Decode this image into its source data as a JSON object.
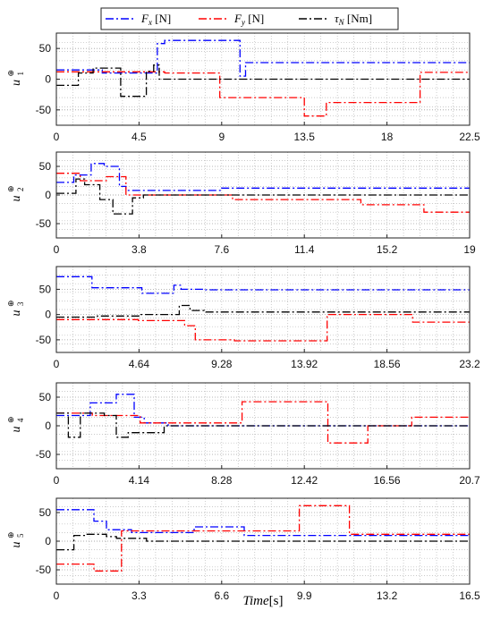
{
  "legend": {
    "entries": [
      {
        "sym": "F",
        "sub": "x",
        "unit": " [N]",
        "color": "#0000ff"
      },
      {
        "sym": "F",
        "sub": "y",
        "unit": " [N]",
        "color": "#ff0000"
      },
      {
        "sym": "τ",
        "sub": "N",
        "unit": " [Nm]",
        "color": "#000000"
      }
    ]
  },
  "xlabel": {
    "italic": "Time",
    "unit": "[s]"
  },
  "chart_data": [
    {
      "type": "line",
      "ylabel": {
        "base": "u",
        "sub": "1",
        "sup": "⊕"
      },
      "xlim": [
        0,
        22.5
      ],
      "ylim": [
        -75,
        75
      ],
      "xtick_labels": [
        "0",
        "4.5",
        "9",
        "13.5",
        "18",
        "22.5"
      ],
      "ytick_labels": [
        "50",
        "0",
        "-50"
      ],
      "yticks": [
        50,
        0,
        -50
      ],
      "grid": true,
      "series": [
        {
          "key": "Fx",
          "color": "#0000ff",
          "x": [
            0,
            2.5,
            2.5,
            5.5,
            5.5,
            5.9,
            5.9,
            10.0,
            10.0,
            10.3,
            10.3,
            22.5
          ],
          "y": [
            15,
            15,
            10,
            10,
            58,
            58,
            63,
            63,
            5,
            5,
            27,
            27
          ]
        },
        {
          "key": "Fy",
          "color": "#ff0000",
          "x": [
            0,
            5.9,
            5.9,
            8.9,
            8.9,
            13.5,
            13.5,
            14.7,
            14.7,
            19.8,
            19.8,
            22.5
          ],
          "y": [
            12,
            12,
            10,
            10,
            -30,
            -30,
            -60,
            -60,
            -38,
            -38,
            11,
            11
          ]
        },
        {
          "key": "Tau",
          "color": "#000000",
          "x": [
            0,
            1.2,
            1.2,
            2.0,
            2.0,
            3.5,
            3.5,
            4.9,
            4.9,
            5.3,
            5.3,
            5.6,
            5.6,
            22.5
          ],
          "y": [
            -10,
            -10,
            10,
            10,
            18,
            18,
            -28,
            -28,
            13,
            13,
            23,
            23,
            0,
            0
          ]
        }
      ]
    },
    {
      "type": "line",
      "ylabel": {
        "base": "u",
        "sub": "2",
        "sup": "⊕"
      },
      "xlim": [
        0,
        19
      ],
      "ylim": [
        -75,
        75
      ],
      "xtick_labels": [
        "0",
        "3.8",
        "7.6",
        "11.4",
        "15.2",
        "19"
      ],
      "ytick_labels": [
        "50",
        "0",
        "-50"
      ],
      "yticks": [
        50,
        0,
        -50
      ],
      "grid": true,
      "series": [
        {
          "key": "Fx",
          "color": "#0000ff",
          "x": [
            0,
            0.8,
            0.8,
            1.6,
            1.6,
            2.2,
            2.2,
            2.9,
            2.9,
            3.2,
            3.2,
            7.6,
            7.6,
            19
          ],
          "y": [
            22,
            22,
            35,
            35,
            55,
            55,
            50,
            50,
            15,
            15,
            8,
            8,
            12,
            12
          ]
        },
        {
          "key": "Fy",
          "color": "#ff0000",
          "x": [
            0,
            1.1,
            1.1,
            2.3,
            2.3,
            3.2,
            3.2,
            8.1,
            8.1,
            14.0,
            14.0,
            16.9,
            16.9,
            19
          ],
          "y": [
            38,
            38,
            25,
            25,
            32,
            32,
            0,
            0,
            -8,
            -8,
            -17,
            -17,
            -30,
            -30
          ]
        },
        {
          "key": "Tau",
          "color": "#000000",
          "x": [
            0,
            0.9,
            0.9,
            1.3,
            1.3,
            2.0,
            2.0,
            2.6,
            2.6,
            3.5,
            3.5,
            4.0,
            4.0,
            19
          ],
          "y": [
            3,
            3,
            28,
            28,
            18,
            18,
            -8,
            -8,
            -33,
            -33,
            -5,
            -5,
            0,
            0
          ]
        }
      ]
    },
    {
      "type": "line",
      "ylabel": {
        "base": "u",
        "sub": "3",
        "sup": "⊕"
      },
      "xlim": [
        0,
        23.2
      ],
      "ylim": [
        -75,
        95
      ],
      "xtick_labels": [
        "0",
        "4.64",
        "9.28",
        "13.92",
        "18.56",
        "23.2"
      ],
      "ytick_labels": [
        "50",
        "0",
        "-50"
      ],
      "yticks": [
        50,
        0,
        -50
      ],
      "grid": true,
      "series": [
        {
          "key": "Fx",
          "color": "#0000ff",
          "x": [
            0,
            2.0,
            2.0,
            4.8,
            4.8,
            6.6,
            6.6,
            7.0,
            7.0,
            8.2,
            8.2,
            23.2
          ],
          "y": [
            75,
            75,
            53,
            53,
            42,
            42,
            58,
            58,
            50,
            50,
            49,
            49
          ]
        },
        {
          "key": "Fy",
          "color": "#ff0000",
          "x": [
            0,
            4.6,
            4.6,
            7.2,
            7.2,
            7.8,
            7.8,
            10.0,
            10.0,
            15.2,
            15.2,
            20.0,
            20.0,
            23.2
          ],
          "y": [
            -10,
            -10,
            -12,
            -12,
            -22,
            -22,
            -50,
            -50,
            -52,
            -52,
            0,
            0,
            -15,
            -15
          ]
        },
        {
          "key": "Tau",
          "color": "#000000",
          "x": [
            0,
            2.3,
            2.3,
            4.7,
            4.7,
            6.9,
            6.9,
            7.5,
            7.5,
            8.3,
            8.3,
            23.2
          ],
          "y": [
            -5,
            -5,
            -3,
            -3,
            0,
            0,
            18,
            18,
            8,
            8,
            5,
            5
          ]
        }
      ]
    },
    {
      "type": "line",
      "ylabel": {
        "base": "u",
        "sub": "4",
        "sup": "⊕"
      },
      "xlim": [
        0,
        20.7
      ],
      "ylim": [
        -75,
        75
      ],
      "xtick_labels": [
        "0",
        "4.14",
        "8.28",
        "12.42",
        "16.56",
        "20.7"
      ],
      "ytick_labels": [
        "50",
        "0",
        "-50"
      ],
      "yticks": [
        50,
        0,
        -50
      ],
      "grid": true,
      "series": [
        {
          "key": "Fx",
          "color": "#0000ff",
          "x": [
            0,
            1.7,
            1.7,
            3.0,
            3.0,
            3.9,
            3.9,
            4.4,
            4.4,
            5.6,
            5.6,
            20.7
          ],
          "y": [
            18,
            18,
            40,
            40,
            55,
            55,
            15,
            15,
            5,
            5,
            0,
            0
          ]
        },
        {
          "key": "Fy",
          "color": "#ff0000",
          "x": [
            0,
            1.8,
            1.8,
            4.2,
            4.2,
            9.3,
            9.3,
            13.6,
            13.6,
            15.6,
            15.6,
            17.8,
            17.8,
            20.7
          ],
          "y": [
            22,
            22,
            18,
            18,
            5,
            5,
            42,
            42,
            -30,
            -30,
            0,
            0,
            15,
            15
          ]
        },
        {
          "key": "Tau",
          "color": "#000000",
          "x": [
            0,
            0.6,
            0.6,
            1.2,
            1.2,
            2.4,
            2.4,
            3.0,
            3.0,
            3.6,
            3.6,
            5.4,
            5.4,
            20.7
          ],
          "y": [
            22,
            22,
            -20,
            -20,
            22,
            22,
            18,
            18,
            -20,
            -20,
            -12,
            -12,
            0,
            0
          ]
        }
      ]
    },
    {
      "type": "line",
      "ylabel": {
        "base": "u",
        "sub": "5",
        "sup": "⊕"
      },
      "xlim": [
        0,
        16.5
      ],
      "ylim": [
        -75,
        75
      ],
      "xtick_labels": [
        "0",
        "3.3",
        "6.6",
        "9.9",
        "13.2",
        "16.5"
      ],
      "ytick_labels": [
        "50",
        "0",
        "-50"
      ],
      "yticks": [
        50,
        0,
        -50
      ],
      "grid": true,
      "series": [
        {
          "key": "Fx",
          "color": "#0000ff",
          "x": [
            0,
            1.5,
            1.5,
            2.0,
            2.0,
            3.0,
            3.0,
            5.5,
            5.5,
            7.5,
            7.5,
            16.5
          ],
          "y": [
            55,
            55,
            35,
            35,
            20,
            20,
            15,
            15,
            25,
            25,
            10,
            10
          ]
        },
        {
          "key": "Fy",
          "color": "#ff0000",
          "x": [
            0,
            1.5,
            1.5,
            2.6,
            2.6,
            9.7,
            9.7,
            11.7,
            11.7,
            16.5
          ],
          "y": [
            -40,
            -40,
            -52,
            -52,
            18,
            18,
            62,
            62,
            12,
            12
          ]
        },
        {
          "key": "Tau",
          "color": "#000000",
          "x": [
            0,
            0.7,
            0.7,
            1.2,
            1.2,
            2.0,
            2.0,
            2.4,
            2.4,
            3.6,
            3.6,
            16.5
          ],
          "y": [
            -15,
            -15,
            10,
            10,
            12,
            12,
            8,
            8,
            5,
            5,
            0,
            0
          ]
        }
      ]
    }
  ]
}
